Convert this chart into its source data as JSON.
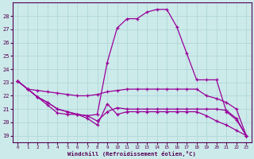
{
  "xlabel": "Windchill (Refroidissement éolien,°C)",
  "background_color": "#cceaea",
  "line_color": "#990099",
  "grid_color": "#aad4d4",
  "xlim": [
    -0.5,
    23.5
  ],
  "ylim": [
    18.5,
    29.0
  ],
  "yticks": [
    19,
    20,
    21,
    22,
    23,
    24,
    25,
    26,
    27,
    28
  ],
  "xticks": [
    0,
    1,
    2,
    3,
    4,
    5,
    6,
    7,
    8,
    9,
    10,
    11,
    12,
    13,
    14,
    15,
    16,
    17,
    18,
    19,
    20,
    21,
    22,
    23
  ],
  "line1_x": [
    0,
    1,
    2,
    3,
    4,
    5,
    6,
    7,
    8,
    9,
    10,
    11,
    12,
    13,
    14,
    15,
    16,
    17,
    18,
    19,
    20,
    21,
    22,
    23
  ],
  "line1_y": [
    23.1,
    22.5,
    21.9,
    21.3,
    20.7,
    20.6,
    20.6,
    20.5,
    20.6,
    24.5,
    27.1,
    27.8,
    27.8,
    28.3,
    28.5,
    28.5,
    27.2,
    25.2,
    23.2,
    23.2,
    23.2,
    20.8,
    20.2,
    19.0
  ],
  "line2_x": [
    0,
    1,
    2,
    3,
    4,
    5,
    6,
    7,
    8,
    9,
    10,
    11,
    12,
    13,
    14,
    15,
    16,
    17,
    18,
    19,
    20,
    21,
    22,
    23
  ],
  "line2_y": [
    23.1,
    22.5,
    22.4,
    22.3,
    22.2,
    22.1,
    22.0,
    22.0,
    22.1,
    22.3,
    22.4,
    22.5,
    22.5,
    22.5,
    22.5,
    22.5,
    22.5,
    22.5,
    22.5,
    22.0,
    21.8,
    21.5,
    21.0,
    19.0
  ],
  "line3_x": [
    0,
    1,
    2,
    3,
    4,
    5,
    6,
    7,
    8,
    9,
    10,
    11,
    12,
    13,
    14,
    15,
    16,
    17,
    18,
    19,
    20,
    21,
    22,
    23
  ],
  "line3_y": [
    23.1,
    22.5,
    21.9,
    21.5,
    21.0,
    20.8,
    20.6,
    20.5,
    20.1,
    20.8,
    21.1,
    21.0,
    21.0,
    21.0,
    21.0,
    21.0,
    21.0,
    21.0,
    21.0,
    21.0,
    21.0,
    20.9,
    20.3,
    19.0
  ],
  "line4_x": [
    0,
    1,
    2,
    3,
    4,
    5,
    6,
    7,
    8,
    9,
    10,
    11,
    12,
    13,
    14,
    15,
    16,
    17,
    18,
    19,
    20,
    21,
    22,
    23
  ],
  "line4_y": [
    23.1,
    22.5,
    21.9,
    21.5,
    21.0,
    20.8,
    20.6,
    20.3,
    19.8,
    21.4,
    20.6,
    20.8,
    20.8,
    20.8,
    20.8,
    20.8,
    20.8,
    20.8,
    20.8,
    20.5,
    20.1,
    19.8,
    19.4,
    19.0
  ]
}
